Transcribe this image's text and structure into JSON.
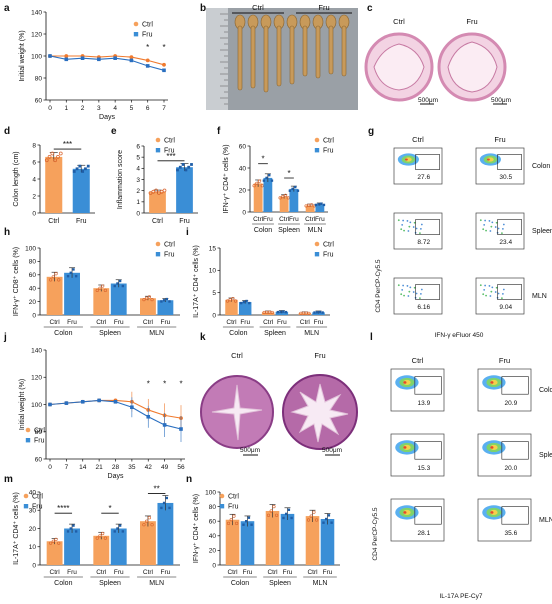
{
  "colors": {
    "ctrl": "#f6a15c",
    "fru": "#3a8ed6",
    "ctrl_line": "#f07a2e",
    "fru_line": "#2a6fc0",
    "he_pink": "#e9a9c8",
    "he_purple": "#8a3d86",
    "facs_bg": "#ffffff"
  },
  "panel_labels": [
    "a",
    "b",
    "c",
    "d",
    "e",
    "f",
    "g",
    "h",
    "i",
    "j",
    "k",
    "l",
    "m",
    "n"
  ],
  "legend": {
    "ctrl": "Ctrl",
    "fru": "Fru"
  },
  "images": {
    "b_header_ctrl": "Ctrl",
    "b_header_fru": "Fru",
    "c_ctrl": "Ctrl",
    "c_fru": "Fru",
    "c_scale": "500μm",
    "k_ctrl": "Ctrl",
    "k_fru": "Fru",
    "k_scale": "500μm"
  },
  "flow_g": {
    "col_ctrl": "Ctrl",
    "col_fru": "Fru",
    "rows": [
      "Colon",
      "Spleen",
      "MLN"
    ],
    "values": [
      [
        "27.6",
        "30.5"
      ],
      [
        "8.72",
        "23.4"
      ],
      [
        "6.16",
        "9.04"
      ]
    ],
    "ylabel": "CD4 PerCP-Cy5.5",
    "xlabel": "IFN-γ eFluor 450",
    "ticks_y": [
      "10⁵",
      "10⁴",
      "10³",
      "10²",
      "10¹"
    ],
    "ticks_x": [
      "10⁰",
      "10¹",
      "10²",
      "10³",
      "10⁴10⁵"
    ]
  },
  "flow_l": {
    "col_ctrl": "Ctrl",
    "col_fru": "Fru",
    "rows": [
      "Colon",
      "Spleen",
      "MLN"
    ],
    "values": [
      [
        "13.9",
        "20.9"
      ],
      [
        "15.3",
        "20.0"
      ],
      [
        "28.1",
        "35.6"
      ]
    ],
    "ylabel": "CD4 PerCP-Cy5.5",
    "xlabel": "IL-17A PE-Cy7",
    "ticks_y": [
      "10⁵",
      "10⁴",
      "10³",
      "0"
    ],
    "ticks_x": [
      "-10³",
      "0",
      "10³",
      "10⁴",
      "10⁵"
    ]
  },
  "chart_data": [
    {
      "id": "a",
      "type": "line",
      "xlabel": "Days",
      "ylabel": "Initial weight (%)",
      "x": [
        0,
        1,
        2,
        3,
        4,
        5,
        6,
        7
      ],
      "xticks": [
        "0",
        "1",
        "2",
        "3",
        "4",
        "5",
        "6",
        "7"
      ],
      "yticks": [
        "60",
        "80",
        "100",
        "120",
        "140"
      ],
      "ylim": [
        60,
        140
      ],
      "series": [
        {
          "name": "Ctrl",
          "values": [
            100,
            100,
            100,
            99,
            100,
            99,
            96,
            92
          ]
        },
        {
          "name": "Fru",
          "values": [
            100,
            97,
            98,
            97,
            98,
            96,
            91,
            87
          ]
        }
      ],
      "annotations": [
        "*",
        "*"
      ]
    },
    {
      "id": "d",
      "type": "bar",
      "ylabel": "Colon length (cm)",
      "categories": [
        "Ctrl",
        "Fru"
      ],
      "values": [
        6.6,
        5.2
      ],
      "yticks": [
        "0",
        "2",
        "4",
        "6",
        "8"
      ],
      "ylim": [
        0,
        8
      ],
      "significance": [
        {
          "groups": [
            "Ctrl",
            "Fru"
          ],
          "mark": "***"
        }
      ]
    },
    {
      "id": "e",
      "type": "bar",
      "ylabel": "Inflammation score",
      "categories": [
        "Ctrl",
        "Fru"
      ],
      "values": [
        1.9,
        4.1
      ],
      "yticks": [
        "0",
        "1",
        "2",
        "3",
        "4",
        "5",
        "6"
      ],
      "ylim": [
        0,
        6
      ],
      "significance": [
        {
          "groups": [
            "Ctrl",
            "Fru"
          ],
          "mark": "***"
        }
      ]
    },
    {
      "id": "f",
      "type": "bar",
      "ylabel": "IFN-γ⁺ CD4⁺ cells (%)",
      "categories": [
        "Colon",
        "Spleen",
        "MLN"
      ],
      "series": [
        {
          "name": "Ctrl",
          "values": [
            26,
            14,
            6
          ]
        },
        {
          "name": "Fru",
          "values": [
            31,
            21,
            7
          ]
        }
      ],
      "yticks": [
        "0",
        "20",
        "40",
        "60"
      ],
      "ylim": [
        0,
        60
      ],
      "significance": [
        {
          "group": "Colon",
          "mark": "*"
        },
        {
          "group": "Spleen",
          "mark": "*"
        }
      ]
    },
    {
      "id": "h",
      "type": "bar",
      "ylabel": "IFN-γ⁺ CD8⁺ cells (%)",
      "categories": [
        "Colon",
        "Spleen",
        "MLN"
      ],
      "series": [
        {
          "name": "Ctrl",
          "values": [
            57,
            40,
            25
          ]
        },
        {
          "name": "Fru",
          "values": [
            63,
            47,
            22
          ]
        }
      ],
      "yticks": [
        "0",
        "20",
        "40",
        "60",
        "80",
        "100"
      ],
      "ylim": [
        0,
        100
      ]
    },
    {
      "id": "i",
      "type": "bar",
      "ylabel": "IL-17A⁺ CD4⁺ cells (%)",
      "categories": [
        "Colon",
        "Spleen",
        "MLN"
      ],
      "series": [
        {
          "name": "Ctrl",
          "values": [
            3.4,
            0.6,
            0.4
          ]
        },
        {
          "name": "Fru",
          "values": [
            2.9,
            0.7,
            0.6
          ]
        }
      ],
      "yticks": [
        "0",
        "5",
        "10",
        "15"
      ],
      "ylim": [
        0,
        15
      ]
    },
    {
      "id": "j",
      "type": "line",
      "xlabel": "Days",
      "ylabel": "Initial weight (%)",
      "x": [
        0,
        7,
        14,
        21,
        28,
        35,
        42,
        49,
        56
      ],
      "xticks": [
        "0",
        "7",
        "14",
        "21",
        "28",
        "35",
        "42",
        "49",
        "56"
      ],
      "yticks": [
        "60",
        "80",
        "100",
        "120",
        "140"
      ],
      "ylim": [
        60,
        140
      ],
      "series": [
        {
          "name": "Ctrl",
          "values": [
            100,
            101,
            102,
            103,
            103,
            102,
            96,
            92,
            90
          ]
        },
        {
          "name": "Fru",
          "values": [
            100,
            101,
            102,
            103,
            102,
            98,
            91,
            85,
            82
          ]
        }
      ],
      "annotations": [
        "*",
        "*",
        "*"
      ]
    },
    {
      "id": "m",
      "type": "bar",
      "ylabel": "IL-17A⁺ CD4⁺ cells (%)",
      "categories": [
        "Colon",
        "Spleen",
        "MLN"
      ],
      "series": [
        {
          "name": "Ctrl",
          "values": [
            13,
            16,
            24
          ]
        },
        {
          "name": "Fru",
          "values": [
            20,
            20,
            34
          ]
        }
      ],
      "yticks": [
        "0",
        "10",
        "20",
        "30",
        "40"
      ],
      "ylim": [
        0,
        40
      ],
      "significance": [
        {
          "group": "Colon",
          "mark": "****"
        },
        {
          "group": "Spleen",
          "mark": "*"
        },
        {
          "group": "MLN",
          "mark": "**"
        }
      ]
    },
    {
      "id": "n",
      "type": "bar",
      "ylabel": "IFN-γ⁺ CD4⁺ cells (%)",
      "categories": [
        "Colon",
        "Spleen",
        "MLN"
      ],
      "series": [
        {
          "name": "Ctrl",
          "values": [
            62,
            74,
            67
          ]
        },
        {
          "name": "Fru",
          "values": [
            60,
            70,
            63
          ]
        }
      ],
      "yticks": [
        "0",
        "20",
        "40",
        "60",
        "80",
        "100"
      ],
      "ylim": [
        0,
        100
      ]
    }
  ]
}
